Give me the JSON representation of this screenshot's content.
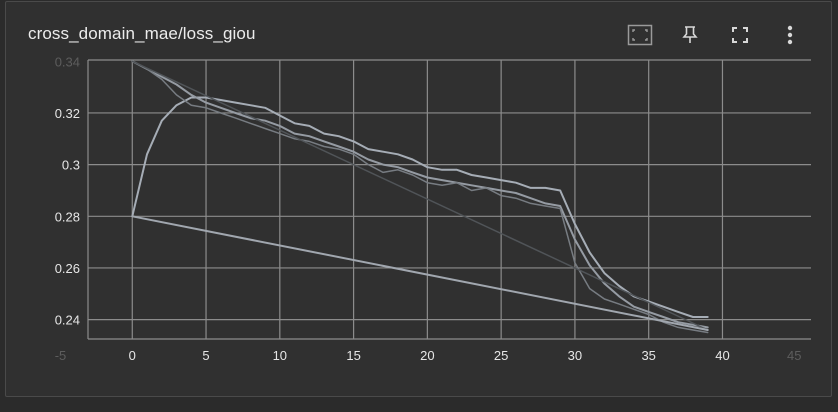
{
  "card": {
    "title": "cross_domain_mae/loss_giou"
  },
  "toolbar": {
    "buttons": [
      {
        "name": "fit-domain-button",
        "icon": "fit-to-data-icon"
      },
      {
        "name": "pin-button",
        "icon": "pin-icon"
      },
      {
        "name": "fullscreen-button",
        "icon": "fullscreen-icon"
      },
      {
        "name": "more-options-button",
        "icon": "more-vert-icon"
      }
    ]
  },
  "colors": {
    "background": "#2b2b2b",
    "card": "#303030",
    "grid": "#8c8c8c",
    "series_bright": "#a6adb6",
    "series_mid": "#8c939b",
    "series_dark": "#5a5e63"
  },
  "chart_data": {
    "type": "line",
    "title": "cross_domain_mae/loss_giou",
    "xlabel": "",
    "ylabel": "",
    "xlim": [
      -3,
      46
    ],
    "ylim": [
      0.2325,
      0.3405
    ],
    "x_ticks": [
      0,
      5,
      10,
      15,
      20,
      25,
      30,
      35,
      40
    ],
    "x_ticks_faint": [
      "-5",
      "45"
    ],
    "y_ticks": [
      0.24,
      0.26,
      0.28,
      0.3,
      0.32
    ],
    "y_tick_labels": [
      "0.24",
      "0.26",
      "0.28",
      "0.3",
      "0.32"
    ],
    "y_tick_faint": "0.34",
    "grid": true,
    "legend": "none",
    "series": [
      {
        "color": "#a6adb6",
        "width": 2,
        "x": [
          0,
          1,
          2,
          3,
          4,
          5,
          6,
          7,
          8,
          9,
          10,
          11,
          12,
          13,
          14,
          15,
          16,
          17,
          18,
          19,
          20,
          21,
          22,
          23,
          24,
          25,
          26,
          27,
          28,
          29,
          30,
          31,
          32,
          33,
          34,
          35,
          36,
          37,
          38,
          39
        ],
        "y": [
          0.28,
          0.304,
          0.317,
          0.323,
          0.326,
          0.326,
          0.325,
          0.324,
          0.323,
          0.322,
          0.319,
          0.316,
          0.315,
          0.312,
          0.311,
          0.309,
          0.306,
          0.305,
          0.304,
          0.302,
          0.299,
          0.298,
          0.298,
          0.296,
          0.295,
          0.294,
          0.293,
          0.291,
          0.291,
          0.29,
          0.277,
          0.266,
          0.258,
          0.253,
          0.249,
          0.247,
          0.245,
          0.243,
          0.241,
          0.241
        ]
      },
      {
        "color": "#959ba3",
        "width": 2,
        "x": [
          0,
          1,
          2,
          3,
          4,
          5,
          6,
          7,
          8,
          9,
          10,
          11,
          12,
          13,
          14,
          15,
          16,
          17,
          18,
          19,
          20,
          21,
          22,
          23,
          24,
          25,
          26,
          27,
          28,
          29,
          30,
          31,
          32,
          33,
          34,
          35,
          36,
          37,
          38,
          39
        ],
        "y": [
          0.34,
          0.337,
          0.334,
          0.331,
          0.327,
          0.324,
          0.322,
          0.32,
          0.318,
          0.317,
          0.315,
          0.312,
          0.311,
          0.309,
          0.307,
          0.305,
          0.302,
          0.3,
          0.299,
          0.297,
          0.295,
          0.294,
          0.293,
          0.292,
          0.291,
          0.29,
          0.289,
          0.287,
          0.285,
          0.284,
          0.271,
          0.261,
          0.254,
          0.249,
          0.245,
          0.243,
          0.241,
          0.239,
          0.238,
          0.237
        ]
      },
      {
        "color": "#777c82",
        "width": 1.5,
        "x": [
          0,
          1,
          2,
          3,
          4,
          5,
          6,
          7,
          8,
          9,
          10,
          11,
          12,
          13,
          14,
          15,
          16,
          17,
          18,
          19,
          20,
          21,
          22,
          23,
          24,
          25,
          26,
          27,
          28,
          29,
          30,
          31,
          32,
          33,
          34,
          35,
          36,
          37,
          38,
          39
        ],
        "y": [
          0.34,
          0.337,
          0.333,
          0.327,
          0.323,
          0.322,
          0.32,
          0.318,
          0.316,
          0.314,
          0.312,
          0.31,
          0.309,
          0.307,
          0.306,
          0.304,
          0.3,
          0.297,
          0.298,
          0.296,
          0.293,
          0.292,
          0.293,
          0.29,
          0.291,
          0.288,
          0.287,
          0.285,
          0.284,
          0.283,
          0.262,
          0.252,
          0.248,
          0.246,
          0.244,
          0.242,
          0.239,
          0.237,
          0.236,
          0.235
        ]
      },
      {
        "color": "#505458",
        "width": 1.5,
        "x": [
          0,
          39
        ],
        "y": [
          0.34,
          0.236
        ]
      },
      {
        "color": "#a1a7af",
        "width": 2,
        "x": [
          0,
          39
        ],
        "y": [
          0.28,
          0.236
        ]
      }
    ]
  }
}
